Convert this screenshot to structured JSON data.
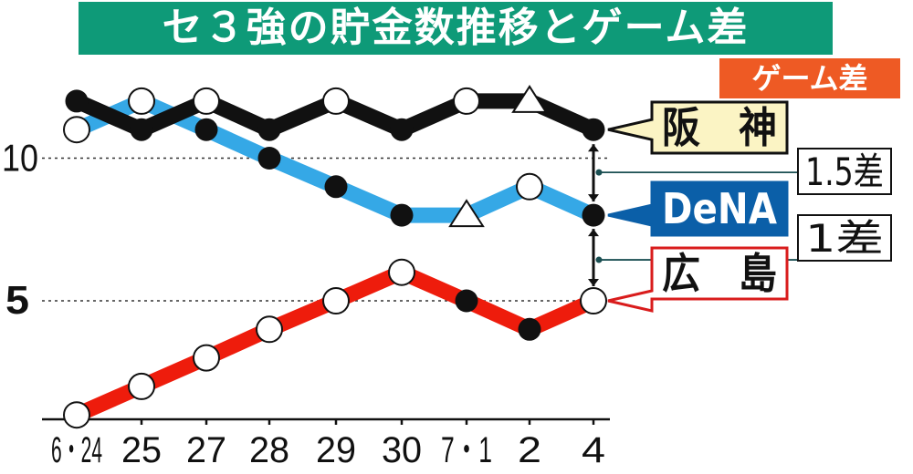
{
  "title": "セ３強の貯金数推移とゲーム差",
  "badge": "ゲーム差",
  "chart_data": {
    "type": "line",
    "categories": [
      "6・24",
      "25",
      "27",
      "28",
      "29",
      "30",
      "7・1",
      "2",
      "4"
    ],
    "y_ticks": [
      "10",
      "5"
    ],
    "ylim": [
      0,
      13
    ],
    "grid": "dotted lines at 10 and 5",
    "series": [
      {
        "name": "阪　神",
        "color": "#111111",
        "values": [
          12,
          11,
          12,
          11,
          12,
          11,
          12,
          12,
          11
        ],
        "markers": [
          "filled",
          "filled",
          "open",
          "filled",
          "open",
          "filled",
          "open",
          "triangle",
          "filled"
        ]
      },
      {
        "name": "DeNA",
        "color": "#35a8e6",
        "values": [
          11,
          12,
          11,
          10,
          9,
          8,
          8,
          9,
          8
        ],
        "markers": [
          "open",
          "open",
          "filled",
          "filled",
          "filled",
          "filled",
          "triangle",
          "open",
          "filled"
        ]
      },
      {
        "name": "広　島",
        "color": "#ee1c0c",
        "values": [
          1,
          2,
          3,
          4,
          5,
          6,
          5,
          4,
          5
        ],
        "markers": [
          "open",
          "open",
          "open",
          "open",
          "open",
          "open",
          "filled",
          "filled",
          "open"
        ]
      }
    ],
    "annotations": [
      "1.5差",
      "1差"
    ]
  }
}
